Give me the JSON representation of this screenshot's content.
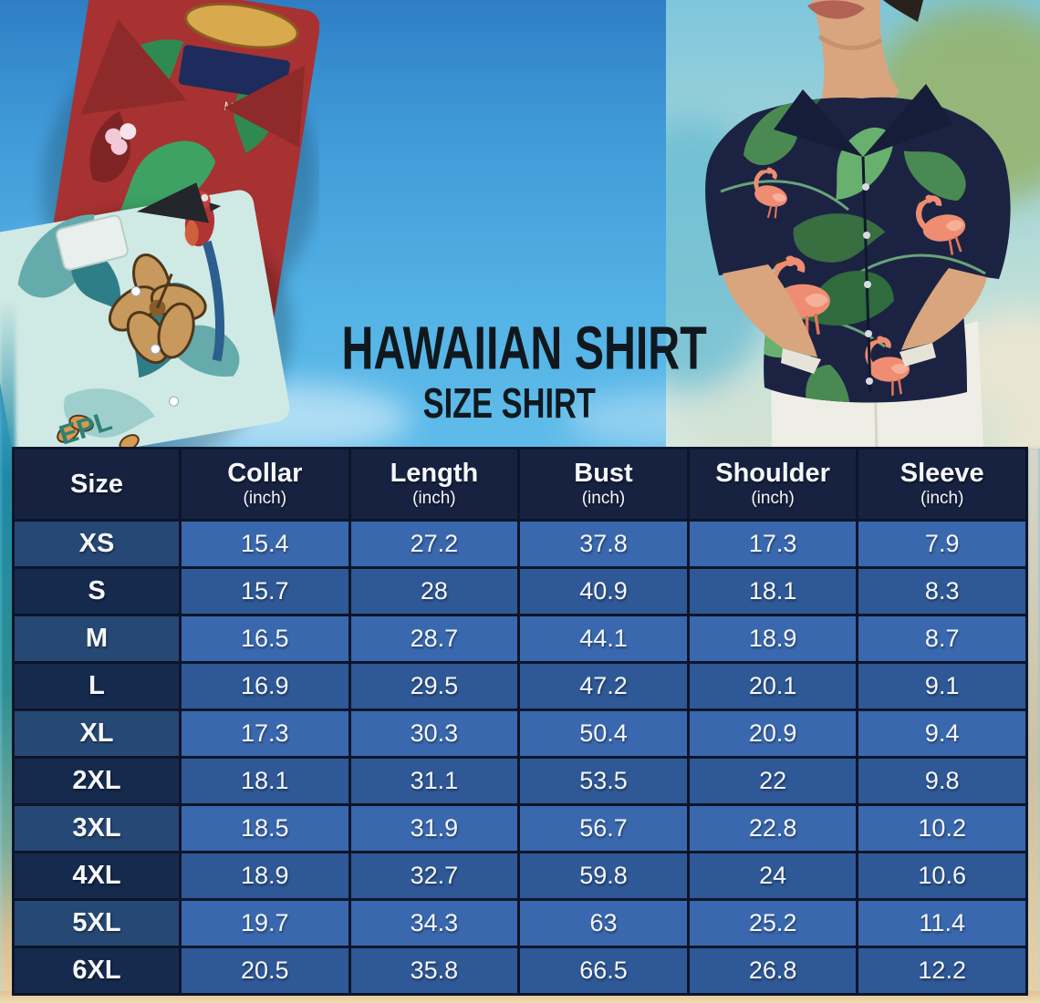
{
  "title": {
    "main": "HAWAIIAN SHIRT",
    "sub": "SIZE SHIRT"
  },
  "photos": {
    "red_shirt_size_tag": "M",
    "teal_shirt_pattern_text": "EPL"
  },
  "size_table": {
    "header": [
      {
        "label": "Size",
        "unit": ""
      },
      {
        "label": "Collar",
        "unit": "(inch)"
      },
      {
        "label": "Length",
        "unit": "(inch)"
      },
      {
        "label": "Bust",
        "unit": "(inch)"
      },
      {
        "label": "Shoulder",
        "unit": "(inch)"
      },
      {
        "label": "Sleeve",
        "unit": "(inch)"
      }
    ],
    "rows": [
      {
        "size": "XS",
        "values": [
          "15.4",
          "27.2",
          "37.8",
          "17.3",
          "7.9"
        ]
      },
      {
        "size": "S",
        "values": [
          "15.7",
          "28",
          "40.9",
          "18.1",
          "8.3"
        ]
      },
      {
        "size": "M",
        "values": [
          "16.5",
          "28.7",
          "44.1",
          "18.9",
          "8.7"
        ]
      },
      {
        "size": "L",
        "values": [
          "16.9",
          "29.5",
          "47.2",
          "20.1",
          "9.1"
        ]
      },
      {
        "size": "XL",
        "values": [
          "17.3",
          "30.3",
          "50.4",
          "20.9",
          "9.4"
        ]
      },
      {
        "size": "2XL",
        "values": [
          "18.1",
          "31.1",
          "53.5",
          "22",
          "9.8"
        ]
      },
      {
        "size": "3XL",
        "values": [
          "18.5",
          "31.9",
          "56.7",
          "22.8",
          "10.2"
        ]
      },
      {
        "size": "4XL",
        "values": [
          "18.9",
          "32.7",
          "59.8",
          "24",
          "10.6"
        ]
      },
      {
        "size": "5XL",
        "values": [
          "19.7",
          "34.3",
          "63",
          "25.2",
          "11.4"
        ]
      },
      {
        "size": "6XL",
        "values": [
          "20.5",
          "35.8",
          "66.5",
          "26.8",
          "12.2"
        ]
      }
    ]
  },
  "chart_data": {
    "type": "table",
    "title": "Hawaiian Shirt Size Shirt",
    "columns": [
      "Size",
      "Collar (inch)",
      "Length (inch)",
      "Bust (inch)",
      "Shoulder (inch)",
      "Sleeve (inch)"
    ],
    "rows": [
      [
        "XS",
        15.4,
        27.2,
        37.8,
        17.3,
        7.9
      ],
      [
        "S",
        15.7,
        28,
        40.9,
        18.1,
        8.3
      ],
      [
        "M",
        16.5,
        28.7,
        44.1,
        18.9,
        8.7
      ],
      [
        "L",
        16.9,
        29.5,
        47.2,
        20.1,
        9.1
      ],
      [
        "XL",
        17.3,
        30.3,
        50.4,
        20.9,
        9.4
      ],
      [
        "2XL",
        18.1,
        31.1,
        53.5,
        22,
        9.8
      ],
      [
        "3XL",
        18.5,
        31.9,
        56.7,
        22.8,
        10.2
      ],
      [
        "4XL",
        18.9,
        32.7,
        59.8,
        24,
        10.6
      ],
      [
        "5XL",
        19.7,
        34.3,
        63,
        25.2,
        11.4
      ],
      [
        "6XL",
        20.5,
        35.8,
        66.5,
        26.8,
        12.2
      ]
    ]
  },
  "colors": {
    "table_header_bg": "#16223f",
    "row_blue_light": "#3a68ae",
    "row_blue_dark": "#2f5896",
    "size_cell_light": "#264874",
    "size_cell_dark": "#152a4d",
    "grid_line": "#0c1529",
    "table_text": "#f5f7fa",
    "title_text": "#10181e",
    "sky_top": "#2e7ec4",
    "sky_bottom": "#a8def4",
    "sand": "#e9d0a3",
    "flamingo_shirt_navy": "#1c2342",
    "red_shirt": "#a73231",
    "teal_shirt": "#cfe9e5"
  }
}
